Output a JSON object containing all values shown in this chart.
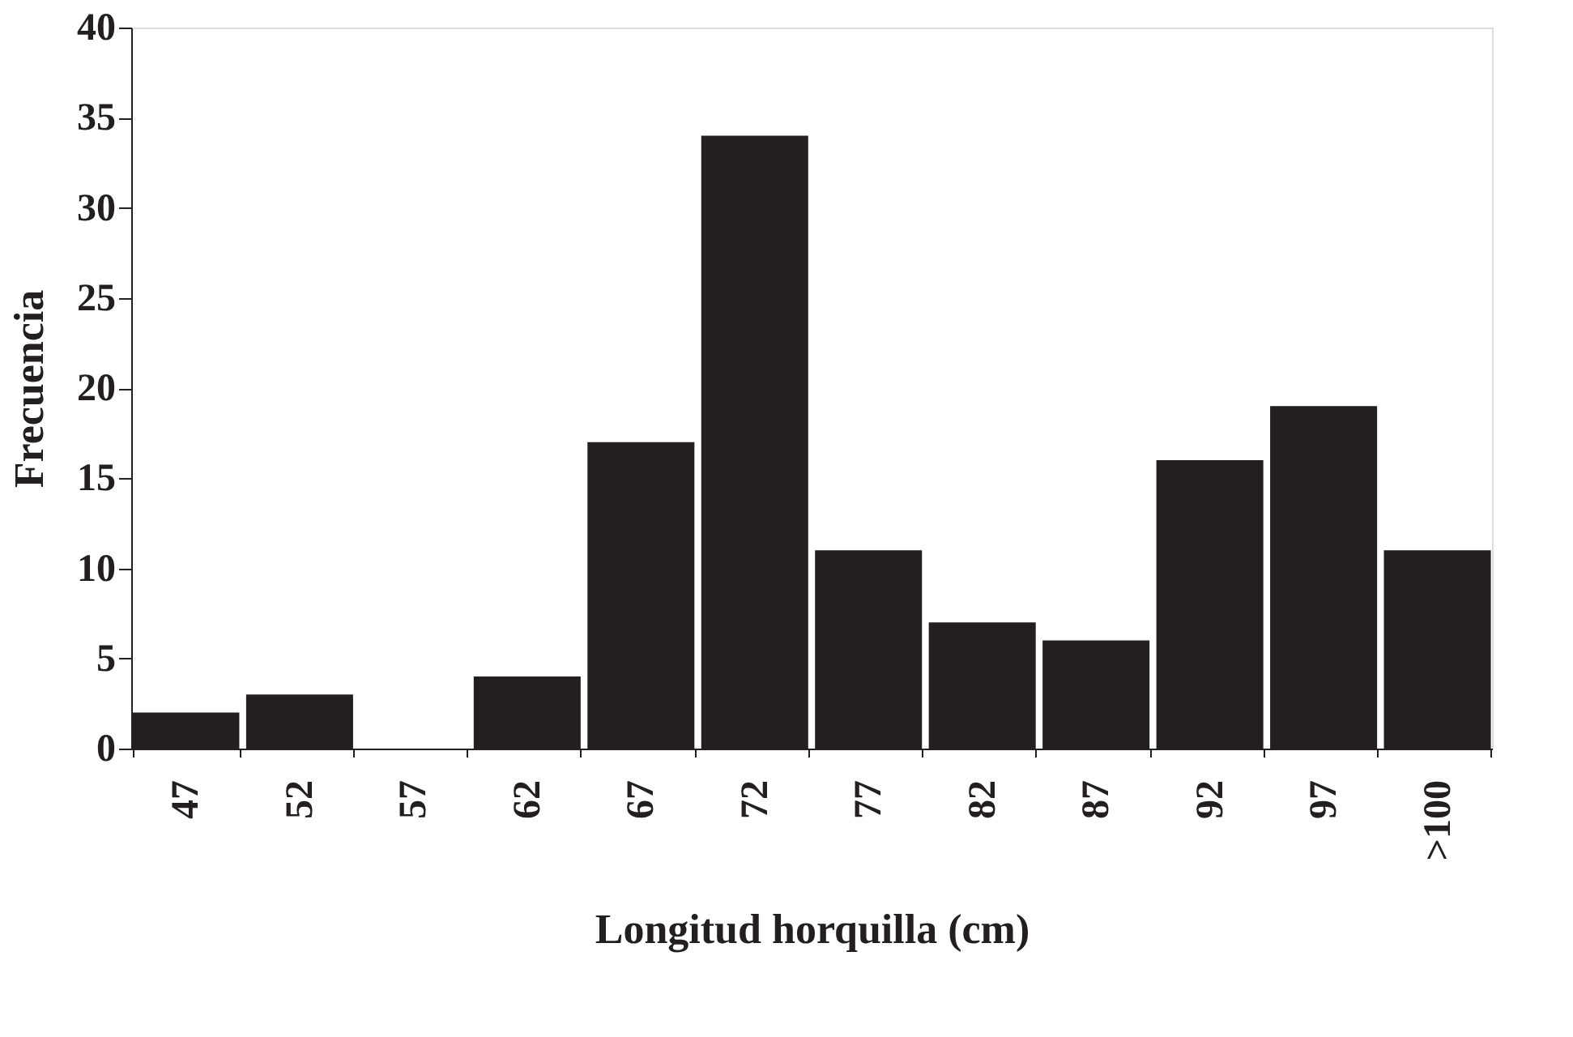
{
  "chart_data": {
    "type": "bar",
    "xlabel": "Longitud horquilla (cm)",
    "ylabel": "Frecuencia",
    "categories": [
      "47",
      "52",
      "57",
      "62",
      "67",
      "72",
      "77",
      "82",
      "87",
      "92",
      "97",
      ">100"
    ],
    "values": [
      2,
      3,
      0,
      4,
      17,
      34,
      11,
      7,
      6,
      16,
      19,
      11
    ],
    "color": "#231f20",
    "ylim": [
      0,
      40
    ],
    "yticks": [
      0,
      5,
      10,
      15,
      20,
      25,
      30,
      35,
      40
    ],
    "grid": false
  }
}
